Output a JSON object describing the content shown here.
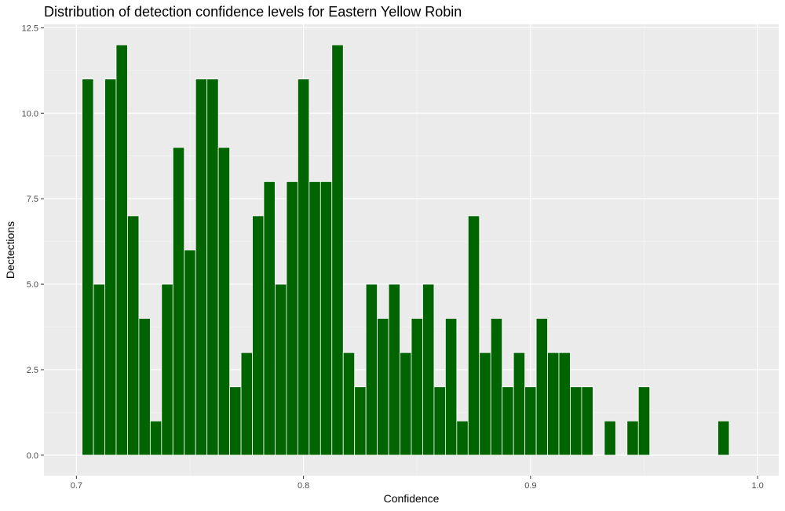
{
  "chart_data": {
    "type": "bar",
    "title": "Distribution of detection confidence levels for Eastern Yellow Robin",
    "xlabel": "Confidence",
    "ylabel": "Dectections",
    "bin_width": 0.005,
    "x": [
      0.705,
      0.71,
      0.715,
      0.72,
      0.725,
      0.73,
      0.735,
      0.74,
      0.745,
      0.75,
      0.755,
      0.76,
      0.765,
      0.77,
      0.775,
      0.78,
      0.785,
      0.79,
      0.795,
      0.8,
      0.805,
      0.81,
      0.815,
      0.82,
      0.825,
      0.83,
      0.835,
      0.84,
      0.845,
      0.85,
      0.855,
      0.86,
      0.865,
      0.87,
      0.875,
      0.88,
      0.885,
      0.89,
      0.895,
      0.9,
      0.905,
      0.91,
      0.915,
      0.92,
      0.925,
      0.935,
      0.945,
      0.95,
      0.985
    ],
    "values": [
      11,
      5,
      11,
      12,
      7,
      4,
      1,
      5,
      9,
      6,
      11,
      11,
      9,
      2,
      3,
      7,
      8,
      5,
      8,
      11,
      8,
      8,
      12,
      3,
      2,
      5,
      4,
      5,
      3,
      4,
      5,
      2,
      4,
      1,
      7,
      3,
      4,
      2,
      3,
      2,
      4,
      3,
      3,
      2,
      2,
      1,
      1,
      2,
      1
    ],
    "xlim": [
      0.6857,
      1.0093
    ],
    "ylim": [
      -0.6,
      12.6
    ],
    "x_ticks": [
      0.7,
      0.8,
      0.9,
      1.0
    ],
    "x_tick_labels": [
      "0.7",
      "0.8",
      "0.9",
      "1.0"
    ],
    "y_ticks": [
      0,
      2.5,
      5,
      7.5,
      10,
      12.5
    ],
    "y_tick_labels": [
      "0.0",
      "2.5",
      "5.0",
      "7.5",
      "10.0",
      "12.5"
    ],
    "grid": true,
    "legend": "none",
    "colors": {
      "bar_fill": "#006400",
      "bar_outline": "#ffffff",
      "panel_background": "#ebebeb",
      "grid_major": "#ffffff",
      "grid_minor": "#f5f5f5",
      "tick_text": "#4d4d4d",
      "tick_mark": "#333333"
    }
  }
}
